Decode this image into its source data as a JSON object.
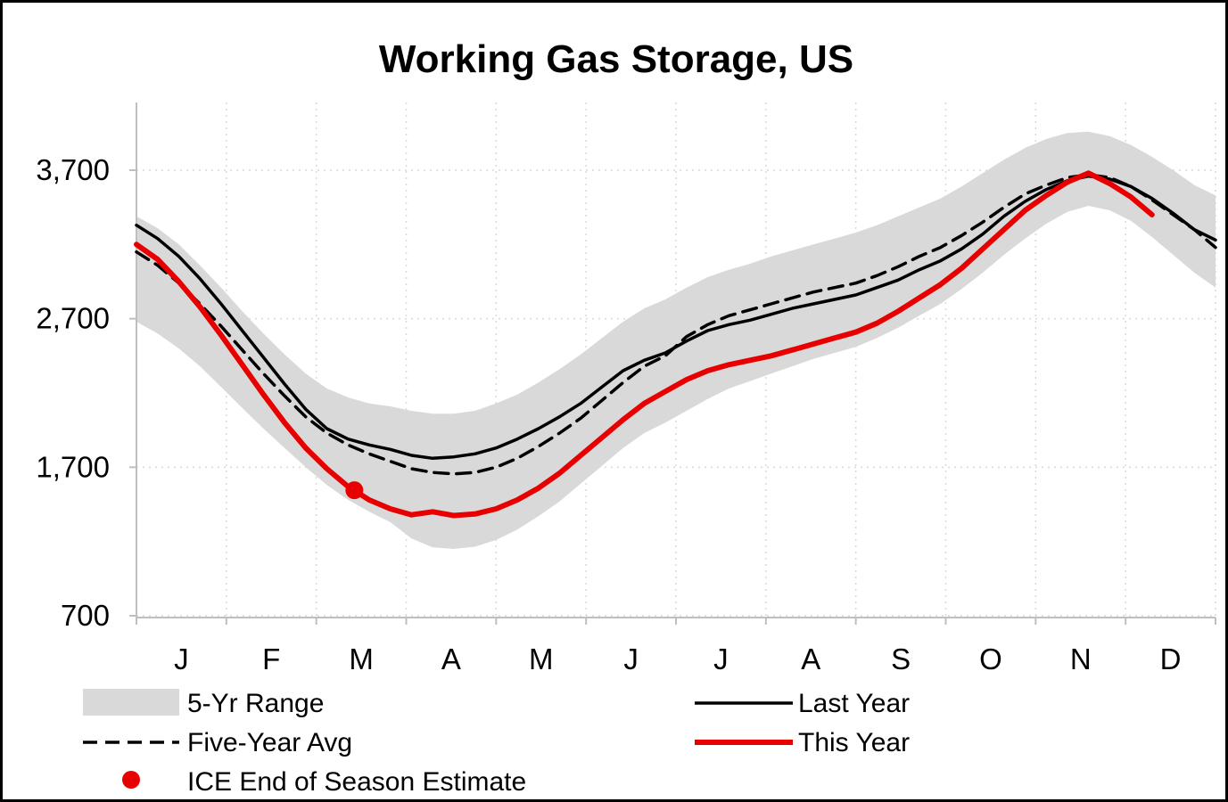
{
  "chart_data": {
    "type": "line",
    "title": "Working Gas Storage, US",
    "x_months": [
      "J",
      "F",
      "M",
      "A",
      "M",
      "J",
      "J",
      "A",
      "S",
      "O",
      "N",
      "D"
    ],
    "ylim": [
      700,
      4160
    ],
    "yticks": [
      {
        "value": 700,
        "label": "700"
      },
      {
        "value": 1700,
        "label": "1,700"
      },
      {
        "value": 2700,
        "label": "2,700"
      },
      {
        "value": 3700,
        "label": "3,700"
      }
    ],
    "x_unit": "week",
    "weeks_total": 52,
    "grid_color": "#d9d9d9",
    "axis_color": "#bfbfbf",
    "band": {
      "name": "5-Yr Range",
      "color": "#d9d9d9",
      "upper": [
        3390,
        3310,
        3200,
        3060,
        2910,
        2750,
        2600,
        2460,
        2330,
        2230,
        2170,
        2130,
        2110,
        2080,
        2060,
        2060,
        2080,
        2130,
        2190,
        2270,
        2360,
        2460,
        2570,
        2680,
        2770,
        2830,
        2910,
        2980,
        3030,
        3070,
        3120,
        3160,
        3200,
        3240,
        3280,
        3330,
        3390,
        3450,
        3510,
        3590,
        3680,
        3770,
        3850,
        3910,
        3950,
        3960,
        3930,
        3870,
        3790,
        3700,
        3600,
        3530
      ],
      "lower": [
        2680,
        2600,
        2500,
        2380,
        2240,
        2100,
        1960,
        1830,
        1700,
        1580,
        1480,
        1400,
        1330,
        1220,
        1160,
        1150,
        1165,
        1210,
        1280,
        1370,
        1470,
        1590,
        1710,
        1830,
        1930,
        2000,
        2080,
        2160,
        2230,
        2280,
        2330,
        2380,
        2430,
        2470,
        2510,
        2570,
        2640,
        2720,
        2800,
        2900,
        3010,
        3130,
        3240,
        3340,
        3420,
        3460,
        3430,
        3360,
        3250,
        3130,
        3010,
        2910
      ]
    },
    "series": [
      {
        "name": "Last Year",
        "color": "#000000",
        "width": 3.5,
        "dash": "",
        "values": [
          3330,
          3240,
          3120,
          2970,
          2800,
          2620,
          2440,
          2260,
          2090,
          1960,
          1890,
          1850,
          1820,
          1780,
          1760,
          1770,
          1790,
          1830,
          1890,
          1960,
          2040,
          2130,
          2240,
          2350,
          2420,
          2470,
          2550,
          2620,
          2660,
          2690,
          2730,
          2770,
          2800,
          2830,
          2860,
          2910,
          2960,
          3030,
          3090,
          3170,
          3270,
          3390,
          3490,
          3570,
          3630,
          3660,
          3640,
          3590,
          3510,
          3410,
          3300,
          3230
        ]
      },
      {
        "name": "Five-Year Avg",
        "color": "#000000",
        "width": 3.5,
        "dash": "16,9",
        "values": [
          3150,
          3060,
          2940,
          2800,
          2650,
          2490,
          2330,
          2180,
          2040,
          1930,
          1850,
          1790,
          1740,
          1690,
          1665,
          1655,
          1665,
          1700,
          1760,
          1840,
          1930,
          2030,
          2150,
          2270,
          2380,
          2450,
          2580,
          2660,
          2720,
          2760,
          2800,
          2840,
          2880,
          2910,
          2940,
          2990,
          3050,
          3120,
          3180,
          3260,
          3350,
          3450,
          3540,
          3600,
          3650,
          3670,
          3650,
          3590,
          3500,
          3400,
          3300,
          3180
        ]
      },
      {
        "name": "This Year",
        "color": "#e80000",
        "width": 6,
        "dash": "",
        "values": [
          3200,
          3100,
          2950,
          2780,
          2590,
          2390,
          2190,
          2000,
          1830,
          1690,
          1570,
          1480,
          1420,
          1380,
          1400,
          1375,
          1385,
          1420,
          1480,
          1560,
          1660,
          1780,
          1900,
          2020,
          2130,
          2210,
          2290,
          2350,
          2390,
          2420,
          2450,
          2490,
          2530,
          2570,
          2610,
          2670,
          2750,
          2840,
          2930,
          3040,
          3170,
          3300,
          3430,
          3530,
          3620,
          3680,
          3610,
          3520,
          3400
        ]
      }
    ],
    "point": {
      "name": "ICE End of Season Estimate",
      "color": "#e80000",
      "x_week": 10.3,
      "value": 1545
    },
    "legend": {
      "band_label": "5-Yr Range",
      "avg_label": "Five-Year Avg",
      "ice_label": "ICE End of Season Estimate",
      "last_year_label": "Last Year",
      "this_year_label": "This Year"
    }
  }
}
